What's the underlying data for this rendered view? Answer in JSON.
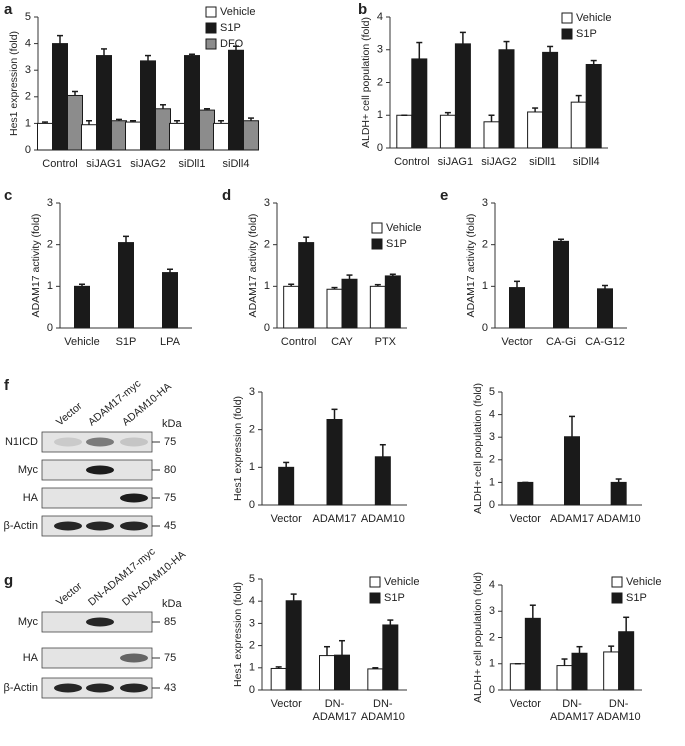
{
  "panels": [
    "a",
    "b",
    "c",
    "d",
    "e",
    "f",
    "g"
  ],
  "chart_data": [
    {
      "type": "bar",
      "ylabel": "Hes1 expression (fold)",
      "categories": [
        "Control",
        "siJAG1",
        "siJAG2",
        "siDll1",
        "siDll4"
      ],
      "ylim": [
        0,
        5
      ],
      "yticks": [
        0,
        1,
        2,
        3,
        4,
        5
      ],
      "series": [
        {
          "name": "Vehicle",
          "color": "#ffffff",
          "values": [
            1.0,
            0.95,
            1.05,
            1.0,
            1.0
          ],
          "errors": [
            0.05,
            0.15,
            0.05,
            0.1,
            0.1
          ]
        },
        {
          "name": "S1P",
          "color": "#1a1a1a",
          "values": [
            4.0,
            3.55,
            3.35,
            3.55,
            3.75
          ],
          "errors": [
            0.3,
            0.25,
            0.2,
            0.05,
            0.15
          ]
        },
        {
          "name": "DFO",
          "color": "#8c8c8c",
          "values": [
            2.05,
            1.1,
            1.55,
            1.5,
            1.1
          ],
          "errors": [
            0.15,
            0.05,
            0.15,
            0.05,
            0.1
          ]
        }
      ]
    },
    {
      "type": "bar",
      "ylabel": "ALDH+ cell population (fold)",
      "categories": [
        "Control",
        "siJAG1",
        "siJAG2",
        "siDll1",
        "siDll4"
      ],
      "ylim": [
        0,
        4
      ],
      "yticks": [
        0,
        1,
        2,
        3,
        4
      ],
      "series": [
        {
          "name": "Vehicle",
          "color": "#ffffff",
          "values": [
            1.0,
            1.0,
            0.8,
            1.1,
            1.4
          ],
          "errors": [
            0,
            0.08,
            0.2,
            0.12,
            0.2
          ]
        },
        {
          "name": "S1P",
          "color": "#1a1a1a",
          "values": [
            2.72,
            3.18,
            3.0,
            2.92,
            2.55
          ],
          "errors": [
            0.5,
            0.35,
            0.25,
            0.18,
            0.12
          ]
        }
      ]
    },
    {
      "type": "bar",
      "ylabel": "ADAM17 activity (fold)",
      "categories": [
        "Vehicle",
        "S1P",
        "LPA"
      ],
      "ylim": [
        0,
        3
      ],
      "yticks": [
        0,
        1,
        2,
        3
      ],
      "series": [
        {
          "color": "#1a1a1a",
          "values": [
            1.0,
            2.05,
            1.33
          ],
          "errors": [
            0.05,
            0.15,
            0.08
          ]
        }
      ]
    },
    {
      "type": "bar",
      "ylabel": "ADAM17 activity (fold)",
      "categories": [
        "Control",
        "CAY",
        "PTX"
      ],
      "ylim": [
        0,
        3
      ],
      "yticks": [
        0,
        1,
        2,
        3
      ],
      "series": [
        {
          "name": "Vehicle",
          "color": "#ffffff",
          "values": [
            1.0,
            0.93,
            1.0
          ],
          "errors": [
            0.05,
            0.04,
            0.04
          ]
        },
        {
          "name": "S1P",
          "color": "#1a1a1a",
          "values": [
            2.05,
            1.17,
            1.25
          ],
          "errors": [
            0.13,
            0.1,
            0.04
          ]
        }
      ]
    },
    {
      "type": "bar",
      "ylabel": "ADAM17 activity (fold)",
      "categories": [
        "Vector",
        "CA-Gi",
        "CA-G12"
      ],
      "ylim": [
        0,
        3
      ],
      "yticks": [
        0,
        1,
        2,
        3
      ],
      "series": [
        {
          "color": "#1a1a1a",
          "values": [
            0.97,
            2.08,
            0.94
          ],
          "errors": [
            0.15,
            0.05,
            0.08
          ]
        }
      ]
    },
    {
      "type": "bar",
      "ylabel": "Hes1 expression (fold)",
      "categories": [
        "Vector",
        "ADAM17",
        "ADAM10"
      ],
      "ylim": [
        0,
        3
      ],
      "yticks": [
        0,
        1,
        2,
        3
      ],
      "series": [
        {
          "color": "#1a1a1a",
          "values": [
            1.0,
            2.27,
            1.28
          ],
          "errors": [
            0.13,
            0.27,
            0.32
          ]
        }
      ]
    },
    {
      "type": "bar",
      "ylabel": "ALDH+ cell population (fold)",
      "categories": [
        "Vector",
        "ADAM17",
        "ADAM10"
      ],
      "ylim": [
        0,
        5
      ],
      "yticks": [
        0,
        1,
        2,
        3,
        4,
        5
      ],
      "series": [
        {
          "color": "#1a1a1a",
          "values": [
            1.0,
            3.02,
            1.0
          ],
          "errors": [
            0,
            0.9,
            0.15
          ]
        }
      ]
    },
    {
      "type": "bar",
      "ylabel": "Hes1 expression (fold)",
      "categories": [
        [
          "Vector"
        ],
        [
          "DN-",
          "ADAM17"
        ],
        [
          "DN-",
          "ADAM10"
        ]
      ],
      "ylim": [
        0,
        5
      ],
      "yticks": [
        0,
        1,
        2,
        3,
        4,
        5
      ],
      "series": [
        {
          "name": "Vehicle",
          "color": "#ffffff",
          "values": [
            0.97,
            1.55,
            0.95
          ],
          "errors": [
            0.07,
            0.4,
            0.05
          ]
        },
        {
          "name": "S1P",
          "color": "#1a1a1a",
          "values": [
            4.02,
            1.57,
            2.93
          ],
          "errors": [
            0.3,
            0.65,
            0.22
          ]
        }
      ]
    },
    {
      "type": "bar",
      "ylabel": "ALDH+ cell population (fold)",
      "categories": [
        [
          "Vector"
        ],
        [
          "DN-",
          "ADAM17"
        ],
        [
          "DN-",
          "ADAM10"
        ]
      ],
      "ylim": [
        0,
        4
      ],
      "yticks": [
        0,
        1,
        2,
        3,
        4
      ],
      "series": [
        {
          "name": "Vehicle",
          "color": "#ffffff",
          "values": [
            1.0,
            0.93,
            1.45
          ],
          "errors": [
            0,
            0.25,
            0.22
          ]
        },
        {
          "name": "S1P",
          "color": "#1a1a1a",
          "values": [
            2.73,
            1.4,
            2.22
          ],
          "errors": [
            0.5,
            0.25,
            0.55
          ]
        }
      ]
    }
  ],
  "blots": [
    {
      "lanes": [
        "Vector",
        "ADAM17-myc",
        "ADAM10-HA"
      ],
      "unit": "kDa",
      "rows": [
        {
          "label": "N1ICD",
          "marker": 75
        },
        {
          "label": "Myc",
          "marker": 80
        },
        {
          "label": "HA",
          "marker": 75
        },
        {
          "label": "β-Actin",
          "marker": 45
        }
      ]
    },
    {
      "lanes": [
        "Vector",
        "DN-ADAM17-myc",
        "DN-ADAM10-HA"
      ],
      "unit": "kDa",
      "rows": [
        {
          "label": "Myc",
          "marker": 85
        },
        {
          "label": "HA",
          "marker": 75
        },
        {
          "label": "β-Actin",
          "marker": 43
        }
      ]
    }
  ]
}
